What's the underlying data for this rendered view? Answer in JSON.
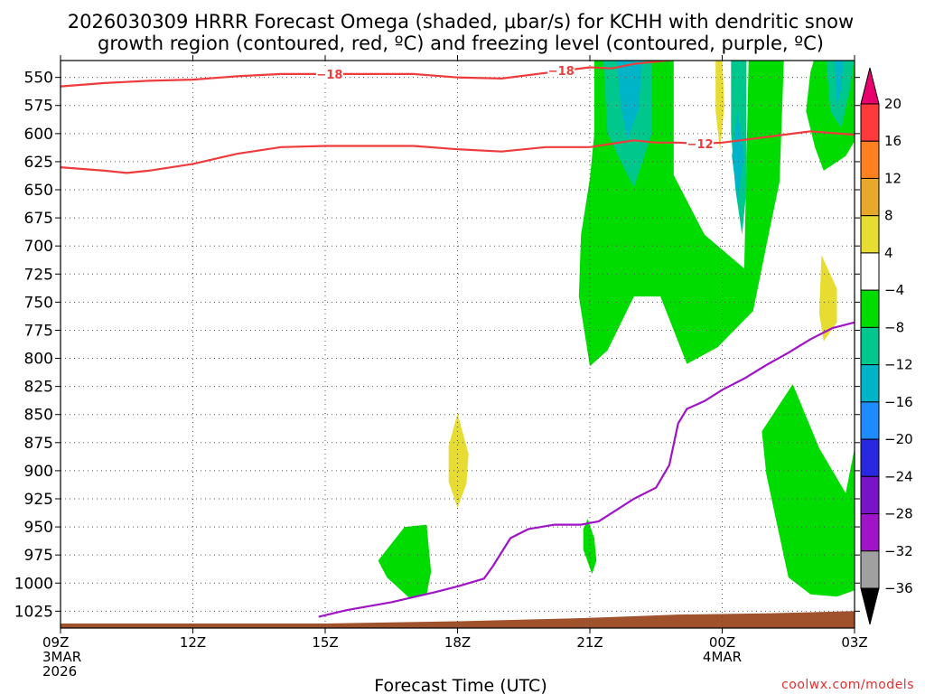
{
  "chart_data": {
    "type": "contour",
    "title_lines": [
      "2026030309 HRRR Forecast Omega (shaded, μbar/s) for KCHH with dendritic snow",
      "growth region (contoured, red, ºC) and freezing level (contoured, purple, ºC)"
    ],
    "xlabel": "Forecast Time (UTC)",
    "x_ticks": [
      {
        "hour": 0,
        "lines": [
          "09Z",
          "3MAR",
          "2026"
        ]
      },
      {
        "hour": 3,
        "lines": [
          "12Z"
        ]
      },
      {
        "hour": 6,
        "lines": [
          "15Z"
        ]
      },
      {
        "hour": 9,
        "lines": [
          "18Z"
        ]
      },
      {
        "hour": 12,
        "lines": [
          "21Z"
        ]
      },
      {
        "hour": 15,
        "lines": [
          "00Z",
          "4MAR"
        ]
      },
      {
        "hour": 18,
        "lines": [
          "03Z"
        ]
      }
    ],
    "xlim": [
      0,
      18
    ],
    "y_ticks": [
      550,
      575,
      600,
      625,
      650,
      675,
      700,
      725,
      750,
      775,
      800,
      825,
      850,
      875,
      900,
      925,
      950,
      975,
      1000,
      1025
    ],
    "ylim": [
      1040,
      535
    ],
    "colorbar": {
      "levels": [
        "20",
        "16",
        "12",
        "8",
        "4",
        "−4",
        "−8",
        "−12",
        "−16",
        "−20",
        "−24",
        "−28",
        "−32",
        "−36"
      ],
      "colors": [
        "#e8006e",
        "#ff3a3a",
        "#ff8020",
        "#e8a82c",
        "#e6dc32",
        "#ffffff",
        "#00dc00",
        "#00c88c",
        "#00b4c8",
        "#1e8cff",
        "#2828e0",
        "#7814c8",
        "#a014c8",
        "#a0a0a0",
        "#000000"
      ]
    },
    "contour_labels": {
      "dgz_upper": "−18",
      "dgz_lower": "−12"
    },
    "omega_regions": [
      {
        "band": "-4 to -8",
        "color": "#00dc00",
        "points": [
          [
            12.1,
            532
          ],
          [
            13.9,
            532
          ],
          [
            13.9,
            637
          ],
          [
            14.6,
            690
          ],
          [
            15.5,
            720
          ],
          [
            15.6,
            532
          ],
          [
            16.4,
            532
          ],
          [
            16.3,
            643
          ],
          [
            16.0,
            700
          ],
          [
            15.7,
            758
          ],
          [
            14.9,
            790
          ],
          [
            14.2,
            805
          ],
          [
            13.6,
            745
          ],
          [
            13.0,
            745
          ],
          [
            12.4,
            793
          ],
          [
            12.0,
            807
          ],
          [
            11.75,
            745
          ],
          [
            11.8,
            690
          ],
          [
            12.0,
            640
          ],
          [
            12.1,
            600
          ]
        ]
      },
      {
        "band": "-4 to -8",
        "color": "#00dc00",
        "points": [
          [
            17.1,
            532
          ],
          [
            18.1,
            532
          ],
          [
            18.1,
            600
          ],
          [
            17.8,
            620
          ],
          [
            17.3,
            633
          ],
          [
            17.1,
            612
          ],
          [
            16.9,
            580
          ],
          [
            17.0,
            545
          ]
        ]
      },
      {
        "band": "-4 to -8",
        "color": "#00dc00",
        "points": [
          [
            16.6,
            823
          ],
          [
            17.2,
            880
          ],
          [
            17.8,
            920
          ],
          [
            18.1,
            860
          ],
          [
            18.1,
            1005
          ],
          [
            17.6,
            1012
          ],
          [
            17.0,
            1010
          ],
          [
            16.5,
            995
          ],
          [
            16.2,
            940
          ],
          [
            16.0,
            903
          ],
          [
            15.9,
            865
          ]
        ]
      },
      {
        "band": "-4 to -8",
        "color": "#00dc00",
        "points": [
          [
            7.2,
            980
          ],
          [
            7.8,
            950
          ],
          [
            8.3,
            948
          ],
          [
            8.4,
            990
          ],
          [
            8.3,
            1010
          ],
          [
            7.9,
            1013
          ],
          [
            7.4,
            995
          ]
        ]
      },
      {
        "band": "-4 to -8",
        "color": "#00dc00",
        "points": [
          [
            11.95,
            943
          ],
          [
            12.1,
            960
          ],
          [
            12.15,
            980
          ],
          [
            12.05,
            992
          ],
          [
            11.85,
            970
          ],
          [
            11.85,
            952
          ]
        ]
      },
      {
        "band": "-8 to -12",
        "color": "#00c88c",
        "points": [
          [
            12.3,
            532
          ],
          [
            13.4,
            532
          ],
          [
            13.4,
            600
          ],
          [
            13.0,
            648
          ],
          [
            12.7,
            625
          ],
          [
            12.4,
            600
          ]
        ]
      },
      {
        "band": "-8 to -12",
        "color": "#00c88c",
        "points": [
          [
            15.2,
            532
          ],
          [
            15.55,
            532
          ],
          [
            15.55,
            650
          ],
          [
            15.45,
            690
          ],
          [
            15.3,
            650
          ],
          [
            15.2,
            600
          ]
        ]
      },
      {
        "band": "-8 to -12",
        "color": "#00c88c",
        "points": [
          [
            17.35,
            532
          ],
          [
            18.0,
            532
          ],
          [
            17.9,
            560
          ],
          [
            17.7,
            595
          ],
          [
            17.45,
            580
          ]
        ]
      },
      {
        "band": "-12 to -16",
        "color": "#00b4c8",
        "points": [
          [
            12.6,
            532
          ],
          [
            13.2,
            532
          ],
          [
            13.1,
            580
          ],
          [
            12.85,
            605
          ],
          [
            12.7,
            575
          ]
        ]
      },
      {
        "band": "-12 to -16",
        "color": "#00b4c8",
        "points": [
          [
            15.35,
            580
          ],
          [
            15.5,
            620
          ],
          [
            15.35,
            660
          ],
          [
            15.22,
            620
          ]
        ]
      },
      {
        "band": "-12 to -16",
        "color": "#00b4c8",
        "points": [
          [
            17.55,
            532
          ],
          [
            17.75,
            532
          ],
          [
            17.7,
            560
          ],
          [
            17.6,
            575
          ]
        ]
      },
      {
        "band": "4 to 8",
        "color": "#e6dc32",
        "points": [
          [
            14.85,
            532
          ],
          [
            15.0,
            532
          ],
          [
            15.05,
            575
          ],
          [
            14.95,
            615
          ],
          [
            14.85,
            580
          ]
        ]
      },
      {
        "band": "4 to 8",
        "color": "#e6dc32",
        "points": [
          [
            17.25,
            708
          ],
          [
            17.6,
            738
          ],
          [
            17.6,
            768
          ],
          [
            17.3,
            785
          ],
          [
            17.2,
            760
          ]
        ]
      },
      {
        "band": "4 to 8",
        "color": "#e6dc32",
        "points": [
          [
            9.0,
            849
          ],
          [
            9.25,
            885
          ],
          [
            9.2,
            912
          ],
          [
            9.0,
            933
          ],
          [
            8.8,
            910
          ],
          [
            8.8,
            878
          ]
        ]
      }
    ],
    "dgz_upper_line": {
      "color": "#ee3c3c",
      "points": [
        [
          0,
          558
        ],
        [
          1,
          555
        ],
        [
          2,
          553
        ],
        [
          3,
          552
        ],
        [
          4,
          549
        ],
        [
          5,
          547
        ],
        [
          6,
          547
        ],
        [
          7,
          547
        ],
        [
          8,
          547
        ],
        [
          9,
          550
        ],
        [
          10,
          551
        ],
        [
          11,
          546
        ],
        [
          12,
          541
        ],
        [
          12.5,
          542
        ],
        [
          13,
          538
        ],
        [
          14,
          534
        ],
        [
          15,
          532
        ]
      ]
    },
    "dgz_lower_line": {
      "color": "#ee3c3c",
      "points": [
        [
          0,
          630
        ],
        [
          1,
          633
        ],
        [
          1.5,
          635
        ],
        [
          2,
          633
        ],
        [
          3,
          627
        ],
        [
          4,
          618
        ],
        [
          5,
          612
        ],
        [
          6,
          611
        ],
        [
          7,
          611
        ],
        [
          8,
          611
        ],
        [
          9,
          614
        ],
        [
          10,
          616
        ],
        [
          11,
          612
        ],
        [
          12,
          612
        ],
        [
          12.5,
          609
        ],
        [
          13,
          606
        ],
        [
          13.5,
          608
        ],
        [
          14,
          608
        ],
        [
          14.5,
          609
        ],
        [
          15,
          608
        ],
        [
          16,
          603
        ],
        [
          17,
          598
        ],
        [
          18,
          601
        ]
      ]
    },
    "freezing_line": {
      "color": "#a014c8",
      "points": [
        [
          5.85,
          1030
        ],
        [
          6.5,
          1024
        ],
        [
          7.5,
          1017
        ],
        [
          8.5,
          1008
        ],
        [
          9,
          1003
        ],
        [
          9.6,
          996
        ],
        [
          9.8,
          985
        ],
        [
          10.2,
          960
        ],
        [
          10.6,
          952
        ],
        [
          11.2,
          948
        ],
        [
          11.8,
          948
        ],
        [
          12.2,
          945
        ],
        [
          13,
          925
        ],
        [
          13.5,
          915
        ],
        [
          13.8,
          895
        ],
        [
          14.0,
          858
        ],
        [
          14.2,
          845
        ],
        [
          14.6,
          838
        ],
        [
          15.0,
          828
        ],
        [
          15.5,
          818
        ],
        [
          16,
          806
        ],
        [
          16.5,
          795
        ],
        [
          17,
          783
        ],
        [
          17.5,
          773
        ],
        [
          18,
          768
        ]
      ]
    },
    "terrain": {
      "color": "#a0522d",
      "surface_points": [
        [
          0,
          1036
        ],
        [
          6,
          1036
        ],
        [
          9,
          1034
        ],
        [
          12,
          1031
        ],
        [
          14,
          1028
        ],
        [
          16,
          1027
        ],
        [
          18,
          1025
        ]
      ]
    },
    "credit": "coolwx.com/models"
  }
}
